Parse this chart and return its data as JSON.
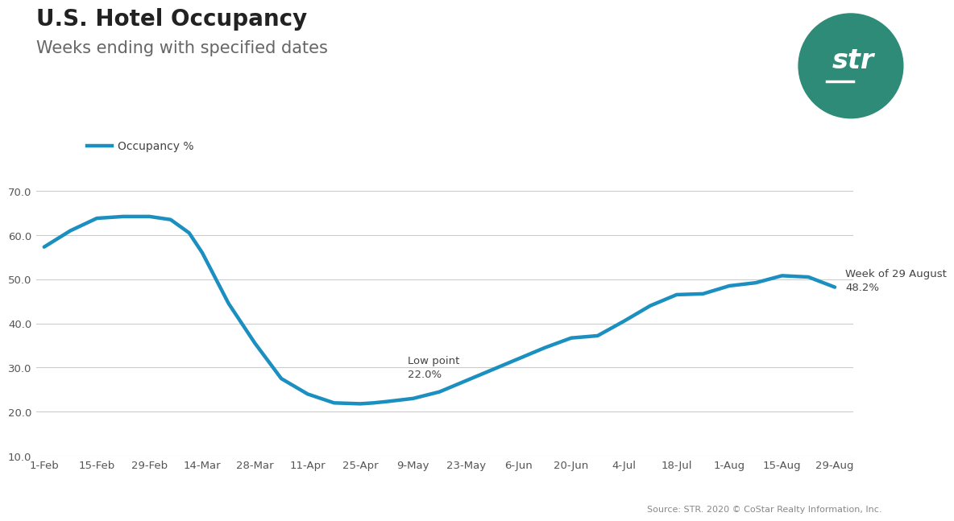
{
  "title": "U.S. Hotel Occupancy",
  "subtitle": "Weeks ending with specified dates",
  "legend_label": "Occupancy %",
  "line_color": "#1a8fc0",
  "line_width": 3.2,
  "background_color": "#ffffff",
  "ylim": [
    10.0,
    74.0
  ],
  "yticks": [
    10.0,
    20.0,
    30.0,
    40.0,
    50.0,
    60.0,
    70.0
  ],
  "source_text": "Source: STR. 2020 © CoStar Realty Information, Inc.",
  "str_circle_color": "#2d8b78",
  "annotation_low_label": "Low point",
  "annotation_low_value": "22.0%",
  "annotation_end_label": "Week of 29 August",
  "annotation_end_value": "48.2%",
  "x_labels": [
    "1-Feb",
    "15-Feb",
    "29-Feb",
    "14-Mar",
    "28-Mar",
    "11-Apr",
    "25-Apr",
    "9-May",
    "23-May",
    "6-Jun",
    "20-Jun",
    "4-Jul",
    "18-Jul",
    "1-Aug",
    "15-Aug",
    "29-Aug"
  ],
  "x_positions": [
    0,
    2,
    4,
    6,
    8,
    10,
    12,
    14,
    16,
    18,
    20,
    22,
    24,
    26,
    28,
    30
  ],
  "data_x": [
    0,
    1,
    2,
    3,
    4,
    4.8,
    5.5,
    6,
    7,
    8,
    9,
    10,
    11,
    12,
    12.5,
    13,
    14,
    15,
    16,
    17,
    18,
    19,
    20,
    21,
    22,
    23,
    24,
    25,
    26,
    27,
    28,
    29,
    30
  ],
  "data_y": [
    57.3,
    61.0,
    63.8,
    64.2,
    64.2,
    63.5,
    60.5,
    56.0,
    44.5,
    35.5,
    27.5,
    24.0,
    22.0,
    21.8,
    22.0,
    22.3,
    23.0,
    24.5,
    27.0,
    29.5,
    32.0,
    34.5,
    36.7,
    37.2,
    40.5,
    44.0,
    46.5,
    46.7,
    48.5,
    49.2,
    50.8,
    50.5,
    48.2
  ]
}
